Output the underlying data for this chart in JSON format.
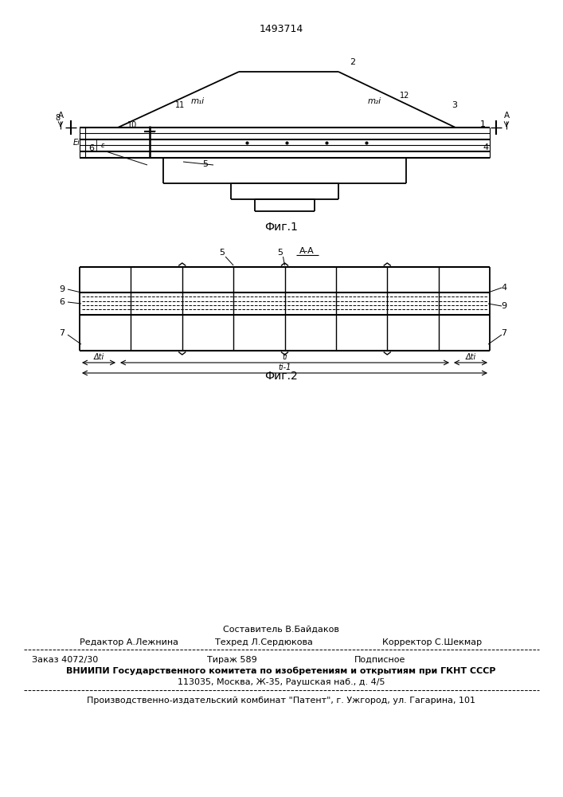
{
  "patent_number": "1493714",
  "fig1_caption": "Фиг.1",
  "fig2_caption": "Фиг.2",
  "footer_sestavitel": "Составитель В.Байдаков",
  "footer_line1_left": "Редактор А.Лежнина",
  "footer_line1_center": "Техред Л.Сердюкова",
  "footer_line1_right": "Корректор С.Шекмар",
  "footer_line2_left": "Заказ 4072/30",
  "footer_line2_center": "Тираж 589",
  "footer_line2_right": "Подписное",
  "footer_line3": "ВНИИПИ Государственного комитета по изобретениям и открытиям при ГКНТ СССР",
  "footer_line4": "113035, Москва, Ж-35, Раушская наб., д. 4/5",
  "footer_line5": "Производственно-издательский комбинат \"Патент\", г. Ужгород, ул. Гагарина, 101",
  "bg_color": "#ffffff",
  "line_color": "#000000"
}
